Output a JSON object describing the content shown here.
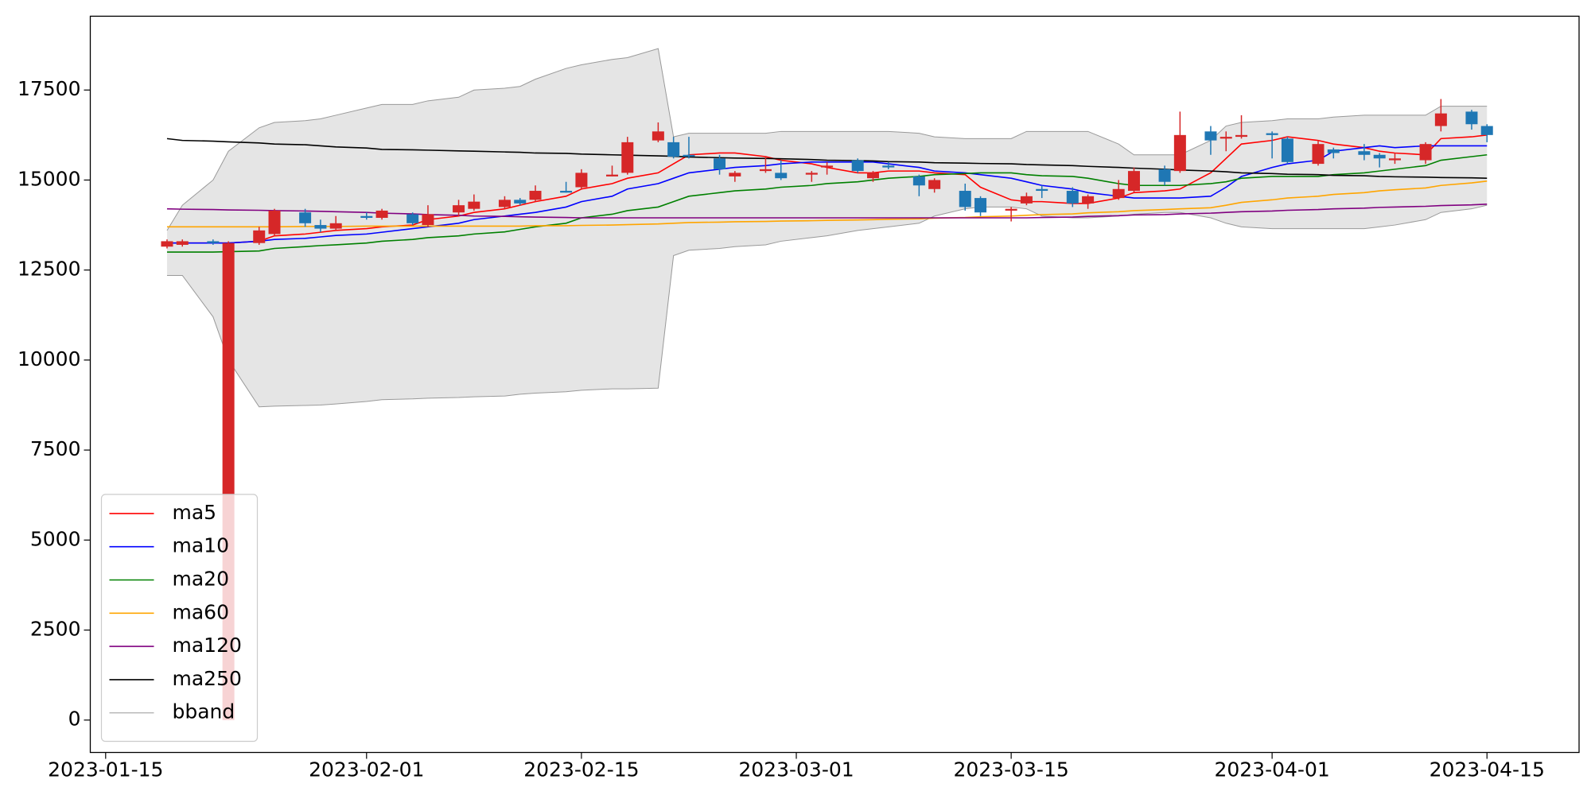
{
  "chart_data": {
    "type": "candlestick",
    "x": [
      "2023-01-19",
      "2023-01-20",
      "2023-01-22",
      "2023-01-23",
      "2023-01-25",
      "2023-01-26",
      "2023-01-28",
      "2023-01-29",
      "2023-01-30",
      "2023-02-01",
      "2023-02-02",
      "2023-02-04",
      "2023-02-05",
      "2023-02-07",
      "2023-02-08",
      "2023-02-10",
      "2023-02-11",
      "2023-02-12",
      "2023-02-14",
      "2023-02-15",
      "2023-02-17",
      "2023-02-18",
      "2023-02-20",
      "2023-02-21",
      "2023-02-22",
      "2023-02-24",
      "2023-02-25",
      "2023-02-27",
      "2023-02-28",
      "2023-03-02",
      "2023-03-03",
      "2023-03-05",
      "2023-03-06",
      "2023-03-07",
      "2023-03-09",
      "2023-03-10",
      "2023-03-12",
      "2023-03-13",
      "2023-03-15",
      "2023-03-16",
      "2023-03-17",
      "2023-03-19",
      "2023-03-20",
      "2023-03-22",
      "2023-03-23",
      "2023-03-25",
      "2023-03-26",
      "2023-03-28",
      "2023-03-29",
      "2023-03-30",
      "2023-04-01",
      "2023-04-02",
      "2023-04-04",
      "2023-04-05",
      "2023-04-07",
      "2023-04-08",
      "2023-04-09",
      "2023-04-11",
      "2023-04-12",
      "2023-04-14",
      "2023-04-15"
    ],
    "open": [
      13150,
      13200,
      13300,
      0,
      13250,
      13500,
      14100,
      13750,
      13650,
      14000,
      13950,
      14050,
      13750,
      14100,
      14200,
      14250,
      14450,
      14450,
      14700,
      14800,
      15100,
      15200,
      16100,
      16050,
      15700,
      15600,
      15100,
      15250,
      15200,
      15150,
      15350,
      15550,
      15050,
      15400,
      15100,
      14750,
      14700,
      14500,
      14150,
      14350,
      14750,
      14700,
      14350,
      14500,
      14700,
      15300,
      15250,
      16350,
      16150,
      16200,
      16300,
      16150,
      15450,
      15850,
      15800,
      15700,
      15550,
      15550,
      16500,
      16900,
      16500
    ],
    "high": [
      13350,
      13350,
      13350,
      13300,
      13700,
      14200,
      14200,
      13900,
      14000,
      14100,
      14200,
      14100,
      14300,
      14450,
      14600,
      14550,
      14500,
      14850,
      14950,
      15300,
      15400,
      16200,
      16600,
      16200,
      16200,
      15700,
      15250,
      15650,
      15550,
      15250,
      15500,
      15600,
      15250,
      15500,
      15150,
      15050,
      14900,
      14550,
      14250,
      14650,
      14850,
      14800,
      14600,
      15000,
      15350,
      15400,
      16900,
      16500,
      16350,
      16800,
      16350,
      16200,
      16100,
      15900,
      16000,
      15750,
      15750,
      16050,
      17250,
      16950,
      16550
    ],
    "low": [
      13100,
      13150,
      13200,
      0,
      13200,
      13450,
      13700,
      13550,
      13600,
      13900,
      13900,
      13750,
      13700,
      14000,
      14150,
      14200,
      14300,
      14400,
      14650,
      14750,
      15100,
      15150,
      16050,
      15600,
      15600,
      15150,
      14950,
      15200,
      15000,
      14950,
      15150,
      15200,
      14950,
      15300,
      14550,
      14650,
      14150,
      14000,
      13850,
      14300,
      14500,
      14250,
      14200,
      14450,
      14650,
      14850,
      15200,
      15700,
      15800,
      16150,
      15600,
      15450,
      15400,
      15600,
      15550,
      15350,
      15450,
      15450,
      16350,
      16400,
      16050
    ],
    "close": [
      13300,
      13300,
      13250,
      13250,
      13600,
      14150,
      13800,
      13650,
      13800,
      13950,
      14150,
      13800,
      14050,
      14300,
      14400,
      14450,
      14350,
      14700,
      14650,
      15200,
      15150,
      16050,
      16350,
      15650,
      15650,
      15300,
      15200,
      15300,
      15050,
      15200,
      15400,
      15250,
      15200,
      15350,
      14850,
      15000,
      14250,
      14100,
      14200,
      14550,
      14700,
      14350,
      14550,
      14750,
      15250,
      14950,
      16250,
      16100,
      16200,
      16250,
      16250,
      15500,
      16000,
      15750,
      15700,
      15600,
      15600,
      16000,
      16850,
      16550,
      16250
    ],
    "up_color": "#d62728",
    "down_color": "#1f77b4",
    "series": [
      {
        "name": "ma5",
        "color": "#ff0000",
        "values": [
          13250,
          13250,
          13250,
          13250,
          13300,
          13450,
          13500,
          13550,
          13600,
          13650,
          13700,
          13750,
          13900,
          14000,
          14100,
          14200,
          14300,
          14400,
          14550,
          14750,
          14900,
          15050,
          15200,
          15450,
          15700,
          15750,
          15750,
          15650,
          15550,
          15450,
          15350,
          15200,
          15200,
          15250,
          15250,
          15200,
          15150,
          14800,
          14450,
          14400,
          14400,
          14350,
          14350,
          14500,
          14650,
          14700,
          14750,
          15200,
          15600,
          16000,
          16100,
          16200,
          16100,
          16000,
          15900,
          15800,
          15750,
          15700,
          16150,
          16200,
          16250
        ]
      },
      {
        "name": "ma10",
        "color": "#0000ff",
        "values": [
          13250,
          13250,
          13250,
          13250,
          13300,
          13350,
          13380,
          13420,
          13460,
          13500,
          13550,
          13650,
          13700,
          13800,
          13900,
          14000,
          14050,
          14100,
          14250,
          14400,
          14550,
          14750,
          14900,
          15050,
          15200,
          15300,
          15350,
          15400,
          15450,
          15500,
          15500,
          15500,
          15500,
          15450,
          15350,
          15250,
          15200,
          15150,
          15050,
          14950,
          14850,
          14750,
          14650,
          14550,
          14500,
          14500,
          14500,
          14550,
          14800,
          15100,
          15350,
          15450,
          15550,
          15800,
          15900,
          15950,
          15900,
          15950,
          15950,
          15950,
          15950
        ]
      },
      {
        "name": "ma20",
        "color": "#008000",
        "values": [
          13000,
          13000,
          13000,
          13010,
          13030,
          13100,
          13150,
          13180,
          13200,
          13250,
          13300,
          13350,
          13400,
          13450,
          13500,
          13560,
          13630,
          13700,
          13800,
          13950,
          14050,
          14150,
          14250,
          14400,
          14550,
          14650,
          14700,
          14750,
          14800,
          14850,
          14900,
          14950,
          15000,
          15050,
          15100,
          15150,
          15180,
          15200,
          15200,
          15150,
          15120,
          15100,
          15050,
          14900,
          14850,
          14850,
          14850,
          14900,
          14950,
          15050,
          15100,
          15100,
          15100,
          15150,
          15200,
          15250,
          15300,
          15400,
          15550,
          15650,
          15700
        ]
      },
      {
        "name": "ma60",
        "color": "#ffa500",
        "values": [
          13700,
          13700,
          13700,
          13700,
          13700,
          13700,
          13710,
          13710,
          13710,
          13720,
          13720,
          13720,
          13720,
          13720,
          13720,
          13720,
          13720,
          13730,
          13730,
          13740,
          13750,
          13760,
          13780,
          13800,
          13820,
          13830,
          13840,
          13850,
          13860,
          13870,
          13880,
          13890,
          13900,
          13910,
          13920,
          13940,
          13960,
          13980,
          14000,
          14020,
          14040,
          14060,
          14090,
          14120,
          14150,
          14180,
          14200,
          14230,
          14300,
          14380,
          14450,
          14500,
          14550,
          14600,
          14650,
          14700,
          14730,
          14780,
          14850,
          14920,
          14970
        ]
      },
      {
        "name": "ma120",
        "color": "#800080",
        "values": [
          14200,
          14190,
          14180,
          14170,
          14160,
          14150,
          14140,
          14130,
          14120,
          14100,
          14080,
          14060,
          14040,
          14020,
          14000,
          13990,
          13980,
          13970,
          13960,
          13950,
          13950,
          13950,
          13950,
          13950,
          13950,
          13950,
          13950,
          13950,
          13950,
          13950,
          13950,
          13950,
          13950,
          13950,
          13950,
          13950,
          13950,
          13950,
          13950,
          13950,
          13960,
          13970,
          13990,
          14010,
          14030,
          14040,
          14060,
          14080,
          14100,
          14120,
          14140,
          14160,
          14180,
          14200,
          14220,
          14240,
          14250,
          14270,
          14290,
          14310,
          14330
        ]
      },
      {
        "name": "ma250",
        "color": "#000000",
        "values": [
          16150,
          16100,
          16080,
          16060,
          16030,
          16000,
          15980,
          15950,
          15920,
          15890,
          15850,
          15840,
          15830,
          15810,
          15800,
          15780,
          15770,
          15750,
          15740,
          15720,
          15700,
          15690,
          15670,
          15660,
          15640,
          15620,
          15610,
          15600,
          15590,
          15570,
          15550,
          15540,
          15530,
          15510,
          15500,
          15480,
          15470,
          15460,
          15450,
          15430,
          15420,
          15400,
          15380,
          15350,
          15330,
          15300,
          15280,
          15250,
          15230,
          15200,
          15180,
          15160,
          15150,
          15130,
          15120,
          15100,
          15090,
          15080,
          15070,
          15060,
          15050
        ]
      }
    ],
    "bband": {
      "name": "bband",
      "color": "#999999",
      "fill": "#e5e5e5",
      "upper": [
        13600,
        14300,
        15000,
        15800,
        16450,
        16600,
        16650,
        16700,
        16800,
        17000,
        17100,
        17100,
        17200,
        17300,
        17500,
        17550,
        17600,
        17800,
        18100,
        18200,
        18350,
        18400,
        18650,
        16200,
        16300,
        16300,
        16300,
        16300,
        16350,
        16350,
        16350,
        16350,
        16350,
        16350,
        16300,
        16200,
        16150,
        16150,
        16150,
        16350,
        16350,
        16350,
        16350,
        16000,
        15700,
        15700,
        15700,
        16100,
        16500,
        16600,
        16650,
        16700,
        16700,
        16750,
        16800,
        16800,
        16800,
        16800,
        17050,
        17050,
        17050
      ],
      "lower": [
        12350,
        12350,
        11200,
        10000,
        8700,
        8720,
        8740,
        8750,
        8780,
        8850,
        8900,
        8920,
        8940,
        8960,
        8980,
        9000,
        9050,
        9080,
        9120,
        9160,
        9200,
        9200,
        9220,
        12900,
        13050,
        13100,
        13150,
        13200,
        13300,
        13400,
        13450,
        13600,
        13650,
        13700,
        13800,
        14000,
        14200,
        14250,
        14250,
        14200,
        14000,
        13950,
        13950,
        14000,
        14050,
        14100,
        14100,
        13950,
        13800,
        13700,
        13650,
        13650,
        13650,
        13650,
        13650,
        13700,
        13750,
        13900,
        14100,
        14200,
        14300
      ]
    },
    "xlim": [
      "2023-01-14",
      "2023-04-21"
    ],
    "xticks": [
      "2023-01-15",
      "2023-02-01",
      "2023-02-15",
      "2023-03-01",
      "2023-03-15",
      "2023-04-01",
      "2023-04-15"
    ],
    "ylim": [
      -900,
      19550
    ],
    "yticks": [
      0,
      2500,
      5000,
      7500,
      10000,
      12500,
      15000,
      17500
    ],
    "legend": "lower left"
  }
}
